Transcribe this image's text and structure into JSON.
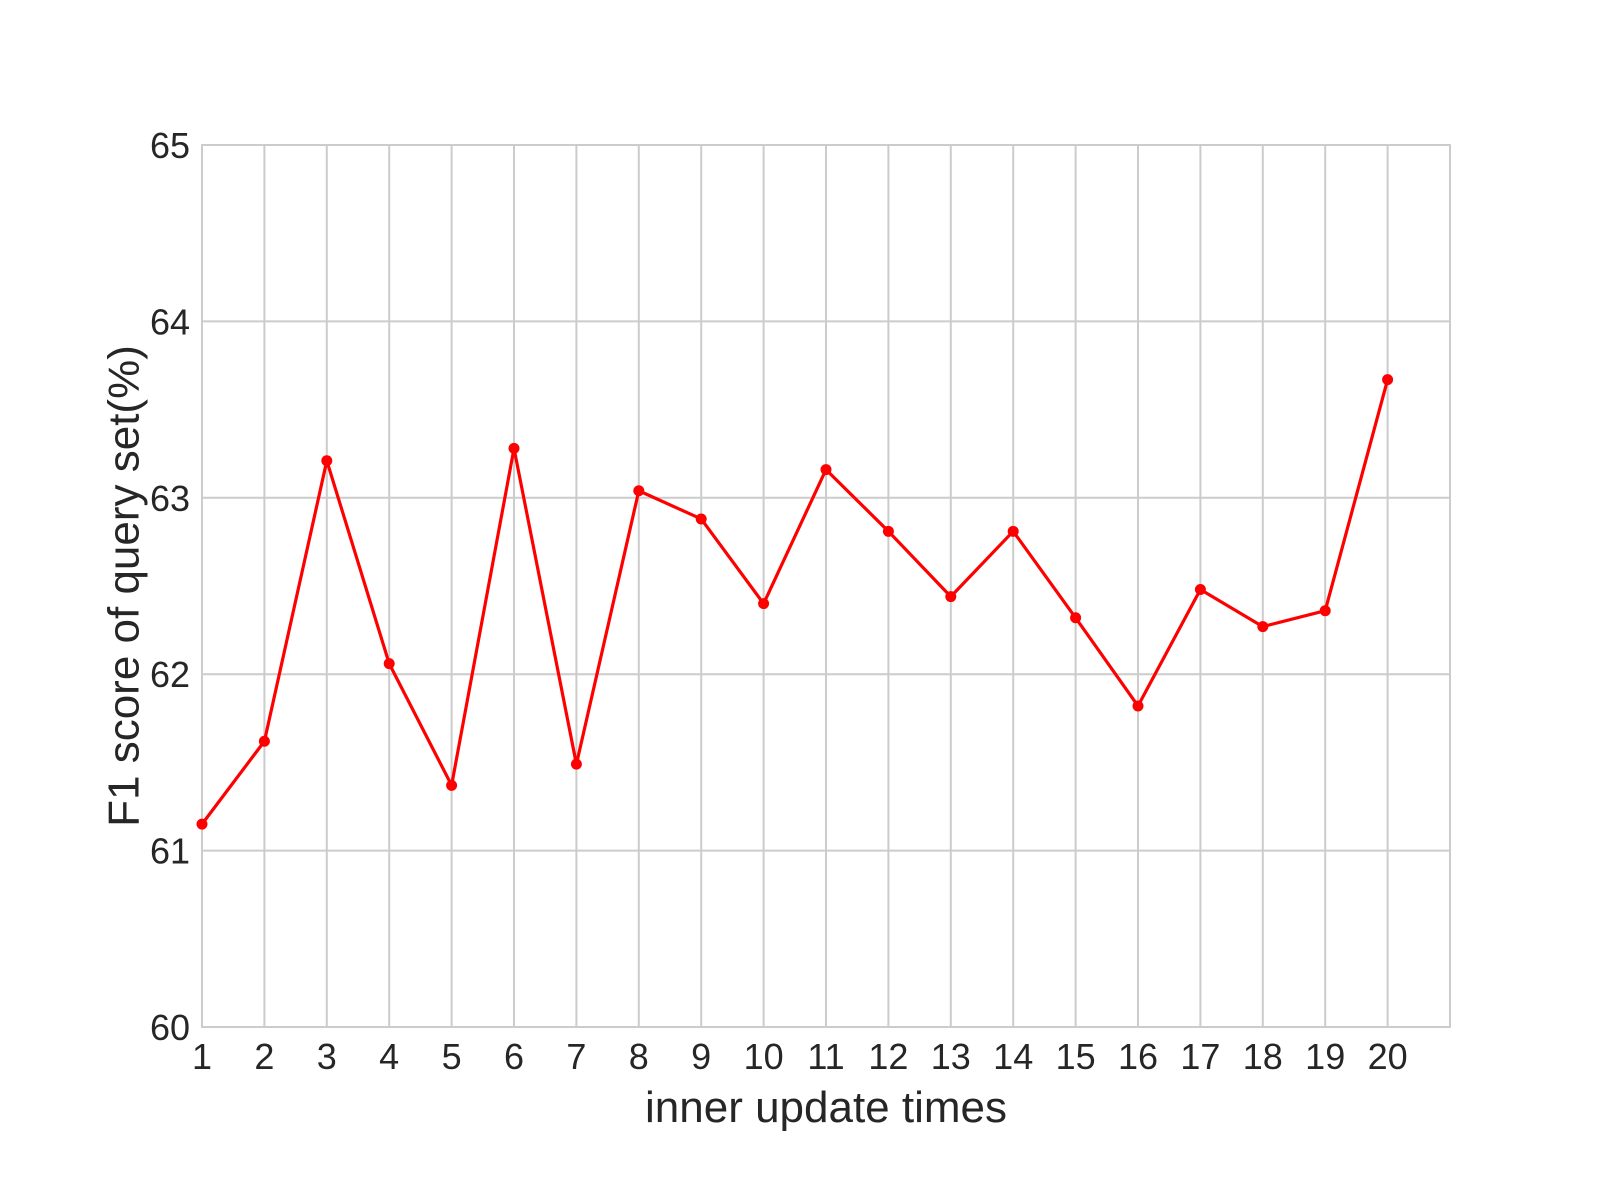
{
  "chart_data": {
    "type": "line",
    "xlabel": "inner update times",
    "ylabel": "F1 score of query set(%)",
    "ylim": [
      60,
      65
    ],
    "xlim": [
      1,
      21
    ],
    "grid": true,
    "x": [
      1,
      2,
      3,
      4,
      5,
      6,
      7,
      8,
      9,
      10,
      11,
      12,
      13,
      14,
      15,
      16,
      17,
      18,
      19,
      20
    ],
    "xticks": [
      "1",
      "2",
      "3",
      "4",
      "5",
      "6",
      "7",
      "8",
      "9",
      "10",
      "11",
      "12",
      "13",
      "14",
      "15",
      "16",
      "17",
      "18",
      "19",
      "20"
    ],
    "yticks": [
      "60",
      "61",
      "62",
      "63",
      "64",
      "65"
    ],
    "series": [
      {
        "color": "#ff0000",
        "values": [
          61.15,
          61.62,
          63.21,
          62.06,
          61.37,
          63.28,
          61.49,
          63.04,
          62.88,
          62.4,
          63.16,
          62.81,
          62.44,
          62.81,
          62.32,
          61.82,
          62.48,
          62.27,
          62.36,
          63.67
        ]
      }
    ]
  }
}
